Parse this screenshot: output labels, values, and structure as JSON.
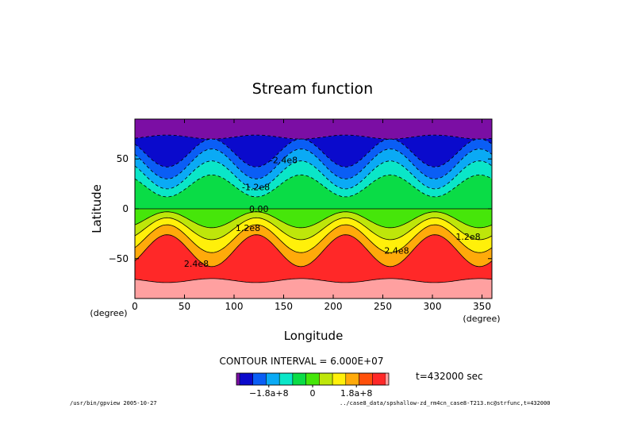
{
  "chart_data": {
    "type": "heatmap",
    "title": "Stream function",
    "xlabel": "Longitude",
    "ylabel": "Latitude",
    "x_unit": "(degree)",
    "y_unit": "(degree)",
    "xlim": [
      0,
      360
    ],
    "ylim": [
      -90,
      90
    ],
    "x_ticks": [
      0,
      50,
      100,
      150,
      200,
      250,
      300,
      350
    ],
    "y_ticks": [
      50,
      0,
      -50
    ],
    "x_tick_labels": [
      "0",
      "50",
      "100",
      "150",
      "200",
      "250",
      "300",
      "350"
    ],
    "y_tick_labels": [
      "50",
      "0",
      "−50"
    ],
    "contour_interval_text": "CONTOUR INTERVAL = 6.000E+07",
    "time_text": "t=432000 sec",
    "wave_number": 4,
    "levels": [
      -300000000.0,
      -240000000.0,
      -180000000.0,
      -120000000.0,
      -60000000.0,
      0,
      60000000.0,
      120000000.0,
      180000000.0,
      240000000.0,
      300000000.0
    ],
    "band_colors": [
      "#7b0ea4",
      "#0a0acc",
      "#0a5ef5",
      "#0aaaf5",
      "#0ae6c8",
      "#0adc46",
      "#46e60a",
      "#bee60a",
      "#fff00a",
      "#ffaa0a",
      "#ff500a",
      "#ff2828",
      "#ffa0a0"
    ],
    "contour_labels": [
      {
        "text": "-2.4e8",
        "lon": 150,
        "lat": 49
      },
      {
        "text": "-1.2e8",
        "lon": 122,
        "lat": 22
      },
      {
        "text": "0.00",
        "lon": 125,
        "lat": 0
      },
      {
        "text": "1.2e8",
        "lon": 114,
        "lat": -19
      },
      {
        "text": "1.2e8",
        "lon": 336,
        "lat": -28
      },
      {
        "text": "2.4e8",
        "lon": 62,
        "lat": -55
      },
      {
        "text": "2.4e8",
        "lon": 264,
        "lat": -42
      }
    ],
    "colorbar": {
      "tick_labels": [
        "−1.8a+8",
        "0",
        "1.8a+8"
      ],
      "tick_values": [
        -180000000.0,
        0,
        180000000.0
      ]
    }
  },
  "footer": {
    "left": "/usr/bin/gpview  2005-10-27",
    "right": "../case8_data/spshallow-zd_rm4cn_case8-T213.nc@strfunc,t=432000"
  }
}
